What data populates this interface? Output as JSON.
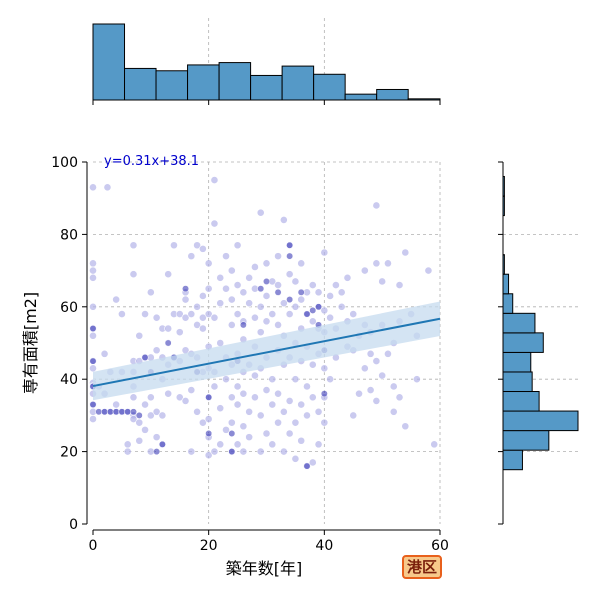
{
  "colors": {
    "hist_fill": "#5599c7",
    "scatter_fill": "#b3b3e8",
    "scatter_dark": "#2a2ab0",
    "regression_line": "#1f77b4",
    "regression_band": "#c6dbef",
    "equation_text": "#0000cc",
    "grid": "#b0b0b0"
  },
  "badge": {
    "text": "港区"
  },
  "chart_data": {
    "type": "scatter",
    "xlabel": "築年数[年]",
    "ylabel": "専有面積[m2]",
    "xlim": [
      0,
      60
    ],
    "ylim": [
      0,
      100
    ],
    "xticks": [
      "0",
      "20",
      "40",
      "60"
    ],
    "yticks": [
      "0",
      "20",
      "40",
      "60",
      "80",
      "100"
    ],
    "grid": true,
    "regression": {
      "equation": "y=0.31x+38.1",
      "slope": 0.31,
      "intercept": 38.1,
      "x_range": [
        0,
        60
      ]
    },
    "points": [
      [
        0,
        93
      ],
      [
        2.5,
        93
      ],
      [
        21,
        95
      ],
      [
        0,
        72
      ],
      [
        0,
        70
      ],
      [
        0,
        68
      ],
      [
        0,
        60
      ],
      [
        0,
        54
      ],
      [
        0,
        52
      ],
      [
        0,
        45
      ],
      [
        0,
        43
      ],
      [
        0,
        39
      ],
      [
        0,
        38
      ],
      [
        0,
        36
      ],
      [
        0,
        33
      ],
      [
        0,
        31
      ],
      [
        0,
        29
      ],
      [
        1,
        38
      ],
      [
        2,
        31
      ],
      [
        2,
        36
      ],
      [
        2,
        47
      ],
      [
        3,
        31
      ],
      [
        3,
        42
      ],
      [
        4,
        31
      ],
      [
        4,
        33
      ],
      [
        4,
        62
      ],
      [
        5,
        31
      ],
      [
        5,
        42
      ],
      [
        5,
        58
      ],
      [
        6,
        31
      ],
      [
        6,
        20
      ],
      [
        6,
        22
      ],
      [
        7,
        30
      ],
      [
        7,
        42
      ],
      [
        7,
        29
      ],
      [
        7,
        35
      ],
      [
        7,
        45
      ],
      [
        7,
        77
      ],
      [
        7,
        69
      ],
      [
        7,
        38
      ],
      [
        8,
        28
      ],
      [
        8,
        45
      ],
      [
        8,
        52
      ],
      [
        8,
        23
      ],
      [
        9,
        26
      ],
      [
        9,
        46
      ],
      [
        9,
        33
      ],
      [
        9,
        58
      ],
      [
        10,
        30
      ],
      [
        10,
        20
      ],
      [
        10,
        64
      ],
      [
        10,
        46
      ],
      [
        10,
        35
      ],
      [
        11,
        31
      ],
      [
        11,
        48
      ],
      [
        11,
        24
      ],
      [
        11,
        57
      ],
      [
        12,
        22
      ],
      [
        12,
        46
      ],
      [
        12,
        54
      ],
      [
        12,
        40
      ],
      [
        12,
        30
      ],
      [
        13,
        44
      ],
      [
        13,
        54
      ],
      [
        13,
        36
      ],
      [
        13,
        69
      ],
      [
        14,
        58
      ],
      [
        14,
        77
      ],
      [
        14,
        46
      ],
      [
        15,
        35
      ],
      [
        15,
        53
      ],
      [
        15,
        58
      ],
      [
        15,
        45
      ],
      [
        16,
        34
      ],
      [
        16,
        64
      ],
      [
        16,
        57
      ],
      [
        16,
        48
      ],
      [
        16,
        62
      ],
      [
        17,
        20
      ],
      [
        17,
        37
      ],
      [
        17,
        47
      ],
      [
        17,
        58
      ],
      [
        17,
        74
      ],
      [
        18,
        31
      ],
      [
        18,
        46
      ],
      [
        18,
        55
      ],
      [
        18,
        60
      ],
      [
        18,
        77
      ],
      [
        19,
        28
      ],
      [
        19,
        42
      ],
      [
        19,
        54
      ],
      [
        19,
        63
      ],
      [
        19,
        76
      ],
      [
        19,
        57
      ],
      [
        20,
        19
      ],
      [
        20,
        24
      ],
      [
        20,
        29
      ],
      [
        20,
        35
      ],
      [
        20,
        43
      ],
      [
        20,
        49
      ],
      [
        20,
        58
      ],
      [
        20,
        65
      ],
      [
        20,
        72
      ],
      [
        21,
        20
      ],
      [
        21,
        38
      ],
      [
        21,
        42
      ],
      [
        21,
        57
      ],
      [
        21,
        83
      ],
      [
        22,
        22
      ],
      [
        22,
        32
      ],
      [
        22,
        50
      ],
      [
        22,
        61
      ],
      [
        22,
        68
      ],
      [
        23,
        26
      ],
      [
        23,
        40
      ],
      [
        23,
        46
      ],
      [
        23,
        65
      ],
      [
        23,
        74
      ],
      [
        24,
        20
      ],
      [
        24,
        28
      ],
      [
        24,
        35
      ],
      [
        24,
        44
      ],
      [
        24,
        55
      ],
      [
        24,
        62
      ],
      [
        24,
        70
      ],
      [
        25,
        22
      ],
      [
        25,
        33
      ],
      [
        25,
        38
      ],
      [
        25,
        47
      ],
      [
        25,
        58
      ],
      [
        25,
        66
      ],
      [
        25,
        77
      ],
      [
        26,
        20
      ],
      [
        26,
        27
      ],
      [
        26,
        36
      ],
      [
        26,
        42
      ],
      [
        26,
        51
      ],
      [
        26,
        56
      ],
      [
        26,
        64
      ],
      [
        27,
        24
      ],
      [
        27,
        31
      ],
      [
        27,
        44
      ],
      [
        27,
        61
      ],
      [
        27,
        68
      ],
      [
        28,
        35
      ],
      [
        28,
        41
      ],
      [
        28,
        49
      ],
      [
        28,
        57
      ],
      [
        28,
        65
      ],
      [
        28,
        71
      ],
      [
        29,
        20
      ],
      [
        29,
        30
      ],
      [
        29,
        43
      ],
      [
        29,
        53
      ],
      [
        29,
        60
      ],
      [
        29,
        86
      ],
      [
        30,
        25
      ],
      [
        30,
        37
      ],
      [
        30,
        46
      ],
      [
        30,
        56
      ],
      [
        30,
        63
      ],
      [
        30,
        72
      ],
      [
        31,
        22
      ],
      [
        31,
        33
      ],
      [
        31,
        40
      ],
      [
        31,
        58
      ],
      [
        31,
        67
      ],
      [
        32,
        28
      ],
      [
        32,
        36
      ],
      [
        32,
        48
      ],
      [
        32,
        55
      ],
      [
        32,
        66
      ],
      [
        32,
        74
      ],
      [
        33,
        20
      ],
      [
        33,
        31
      ],
      [
        33,
        44
      ],
      [
        33,
        52
      ],
      [
        33,
        61
      ],
      [
        33,
        84
      ],
      [
        34,
        25
      ],
      [
        34,
        34
      ],
      [
        34,
        46
      ],
      [
        34,
        58
      ],
      [
        34,
        69
      ],
      [
        34,
        77
      ],
      [
        35,
        18
      ],
      [
        35,
        28
      ],
      [
        35,
        40
      ],
      [
        35,
        50
      ],
      [
        35,
        60
      ],
      [
        35,
        67
      ],
      [
        36,
        23
      ],
      [
        36,
        33
      ],
      [
        36,
        45
      ],
      [
        36,
        54
      ],
      [
        36,
        62
      ],
      [
        36,
        72
      ],
      [
        37,
        16
      ],
      [
        37,
        30
      ],
      [
        37,
        38
      ],
      [
        37,
        49
      ],
      [
        37,
        58
      ],
      [
        37,
        64
      ],
      [
        38,
        17
      ],
      [
        38,
        35
      ],
      [
        38,
        44
      ],
      [
        38,
        56
      ],
      [
        38,
        66
      ],
      [
        39,
        22
      ],
      [
        39,
        31
      ],
      [
        39,
        47
      ],
      [
        39,
        54
      ],
      [
        39,
        60
      ],
      [
        39,
        64
      ],
      [
        40,
        28
      ],
      [
        40,
        35
      ],
      [
        40,
        43
      ],
      [
        40,
        53
      ],
      [
        40,
        59
      ],
      [
        40,
        75
      ],
      [
        41,
        40
      ],
      [
        41,
        57
      ],
      [
        41,
        63
      ],
      [
        42,
        46
      ],
      [
        42,
        54
      ],
      [
        42,
        66
      ],
      [
        43,
        60
      ],
      [
        43,
        64
      ],
      [
        44,
        49
      ],
      [
        44,
        56
      ],
      [
        44,
        68
      ],
      [
        45,
        30
      ],
      [
        45,
        48
      ],
      [
        45,
        58
      ],
      [
        46,
        36
      ],
      [
        46,
        52
      ],
      [
        47,
        43
      ],
      [
        47,
        55
      ],
      [
        47,
        70
      ],
      [
        48,
        37
      ],
      [
        48,
        47
      ],
      [
        48,
        53
      ],
      [
        49,
        34
      ],
      [
        49,
        45
      ],
      [
        49,
        72
      ],
      [
        49,
        88
      ],
      [
        50,
        41
      ],
      [
        50,
        55
      ],
      [
        50,
        67
      ],
      [
        51,
        47
      ],
      [
        51,
        72
      ],
      [
        52,
        38
      ],
      [
        52,
        50
      ],
      [
        52,
        31
      ],
      [
        53,
        35
      ],
      [
        53,
        56
      ],
      [
        53,
        66
      ],
      [
        54,
        27
      ],
      [
        54,
        75
      ],
      [
        55,
        58
      ],
      [
        56,
        40
      ],
      [
        56,
        52
      ],
      [
        58,
        70
      ],
      [
        59,
        22
      ]
    ],
    "dark_points": [
      [
        0,
        54
      ],
      [
        0,
        45
      ],
      [
        0,
        38
      ],
      [
        0,
        33
      ],
      [
        1,
        31
      ],
      [
        2,
        31
      ],
      [
        3,
        31
      ],
      [
        4,
        31
      ],
      [
        5,
        31
      ],
      [
        6,
        31
      ],
      [
        7,
        31
      ],
      [
        8,
        30
      ],
      [
        9,
        46
      ],
      [
        10,
        42
      ],
      [
        11,
        20
      ],
      [
        12,
        22
      ],
      [
        13,
        50
      ],
      [
        14,
        46
      ],
      [
        16,
        65
      ],
      [
        18,
        42
      ],
      [
        20,
        35
      ],
      [
        20,
        25
      ],
      [
        24,
        25
      ],
      [
        24,
        20
      ],
      [
        25,
        45
      ],
      [
        26,
        55
      ],
      [
        29,
        65
      ],
      [
        30,
        67
      ],
      [
        32,
        64
      ],
      [
        34,
        62
      ],
      [
        34,
        74
      ],
      [
        34,
        77
      ],
      [
        36,
        64
      ],
      [
        37,
        16
      ],
      [
        37,
        58
      ],
      [
        38,
        59
      ],
      [
        39,
        55
      ],
      [
        40,
        36
      ],
      [
        39,
        60
      ],
      [
        40,
        48
      ]
    ],
    "marginal_x_hist": {
      "bins": [
        0,
        5.45,
        10.9,
        16.35,
        21.8,
        27.25,
        32.7,
        38.15,
        43.6,
        49.05,
        54.5,
        60
      ],
      "counts": [
        65,
        27,
        25,
        30,
        32,
        21,
        29,
        22,
        5,
        9,
        1
      ]
    },
    "marginal_y_hist": {
      "bins": [
        15,
        20.4,
        25.8,
        31.2,
        36.6,
        42,
        47.4,
        52.8,
        58.2,
        63.6,
        69,
        74.4,
        79.8,
        85.2,
        90.6,
        96
      ],
      "counts": [
        14,
        33,
        54,
        26,
        21,
        20,
        29,
        23,
        7,
        4,
        1,
        0,
        0,
        1,
        1
      ]
    }
  }
}
